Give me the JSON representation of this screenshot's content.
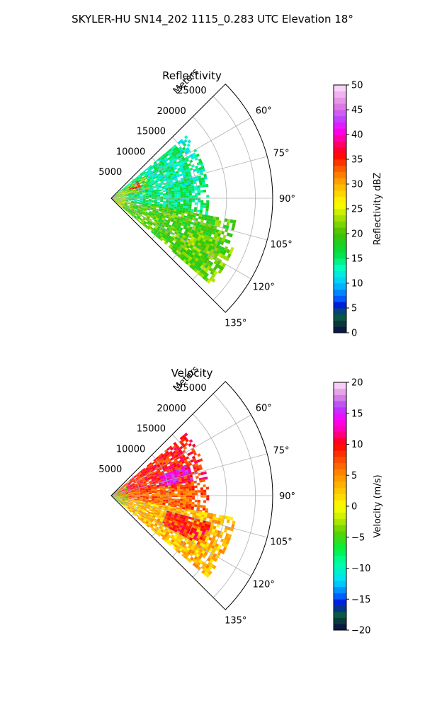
{
  "figure": {
    "title": "SKYLER-HU  SN14_202  1115_0.283 UTC Elevation 18°"
  },
  "chart_data": [
    {
      "type": "polar-sector",
      "title": "Reflectivity",
      "radial_label": "Meters",
      "theta_range_deg": [
        45,
        135
      ],
      "r_range": [
        0,
        28000
      ],
      "r_ticks": [
        5000,
        10000,
        15000,
        20000,
        25000
      ],
      "r_tick_labels": [
        "5000",
        "10000",
        "15000",
        "20000",
        "25000"
      ],
      "theta_ticks": [
        60,
        75,
        90,
        105,
        120,
        135
      ],
      "theta_tick_labels": [
        "60°",
        "75°",
        "90°",
        "105°",
        "120°",
        "135°"
      ],
      "grid": true,
      "field_regions": [
        {
          "theta": [
            50,
            80
          ],
          "r": [
            0,
            17000
          ],
          "value": 14
        },
        {
          "theta": [
            55,
            80
          ],
          "r": [
            0,
            7000
          ],
          "value": 22
        },
        {
          "theta": [
            58,
            68
          ],
          "r": [
            3500,
            5500
          ],
          "value": 35
        },
        {
          "theta": [
            80,
            100
          ],
          "r": [
            0,
            17000
          ],
          "value": 15
        },
        {
          "theta": [
            100,
            130
          ],
          "r": [
            0,
            22000
          ],
          "value": 20
        },
        {
          "theta": [
            112,
            130
          ],
          "r": [
            14000,
            23000
          ],
          "value": 21
        },
        {
          "theta": [
            50,
            130
          ],
          "r": [
            0,
            2500
          ],
          "value": 26
        }
      ],
      "colorbar": {
        "label": "Reflectivity dBZ",
        "range": [
          0,
          50
        ],
        "ticks": [
          0,
          5,
          10,
          15,
          20,
          25,
          30,
          35,
          40,
          45,
          50
        ],
        "tick_labels": [
          "0",
          "5",
          "10",
          "15",
          "20",
          "25",
          "30",
          "35",
          "40",
          "45",
          "50"
        ],
        "color_stops": [
          {
            "v": 0,
            "c": "#0a0a4a"
          },
          {
            "v": 2,
            "c": "#0a3a3a"
          },
          {
            "v": 4,
            "c": "#0a6a4a"
          },
          {
            "v": 5,
            "c": "#0000cc"
          },
          {
            "v": 7,
            "c": "#0060ff"
          },
          {
            "v": 10,
            "c": "#00c8ff"
          },
          {
            "v": 13,
            "c": "#00ffc8"
          },
          {
            "v": 16,
            "c": "#00e040"
          },
          {
            "v": 20,
            "c": "#40c000"
          },
          {
            "v": 23,
            "c": "#a0e000"
          },
          {
            "v": 26,
            "c": "#ffff00"
          },
          {
            "v": 30,
            "c": "#ffb000"
          },
          {
            "v": 33,
            "c": "#ff6000"
          },
          {
            "v": 36,
            "c": "#ff0000"
          },
          {
            "v": 38,
            "c": "#ff0060"
          },
          {
            "v": 41,
            "c": "#ff00ff"
          },
          {
            "v": 43,
            "c": "#c040ff"
          },
          {
            "v": 46,
            "c": "#e080e0"
          },
          {
            "v": 50,
            "c": "#ffe0ff"
          }
        ]
      }
    },
    {
      "type": "polar-sector",
      "title": "Velocity",
      "radial_label": "Meters",
      "theta_range_deg": [
        45,
        135
      ],
      "r_range": [
        0,
        28000
      ],
      "r_ticks": [
        5000,
        10000,
        15000,
        20000,
        25000
      ],
      "r_tick_labels": [
        "5000",
        "10000",
        "15000",
        "20000",
        "25000"
      ],
      "theta_ticks": [
        60,
        75,
        90,
        105,
        120,
        135
      ],
      "theta_tick_labels": [
        "60°",
        "75°",
        "90°",
        "105°",
        "120°",
        "135°"
      ],
      "grid": true,
      "field_regions": [
        {
          "theta": [
            50,
            80
          ],
          "r": [
            0,
            17000
          ],
          "value": 9
        },
        {
          "theta": [
            68,
            82
          ],
          "r": [
            9000,
            14500
          ],
          "value": 14
        },
        {
          "theta": [
            80,
            100
          ],
          "r": [
            0,
            17000
          ],
          "value": 7
        },
        {
          "theta": [
            100,
            130
          ],
          "r": [
            0,
            22000
          ],
          "value": 3
        },
        {
          "theta": [
            105,
            118
          ],
          "r": [
            10000,
            18000
          ],
          "value": 9
        },
        {
          "theta": [
            50,
            130
          ],
          "r": [
            0,
            3000
          ],
          "value": -4
        }
      ],
      "colorbar": {
        "label": "Velocity (m/s)",
        "range": [
          -20,
          20
        ],
        "ticks": [
          -20,
          -15,
          -10,
          -5,
          0,
          5,
          10,
          15,
          20
        ],
        "tick_labels": [
          "−20",
          "−15",
          "−10",
          "−5",
          "0",
          "5",
          "10",
          "15",
          "20"
        ],
        "color_stops": [
          {
            "v": -20,
            "c": "#0a0a4a"
          },
          {
            "v": -18.5,
            "c": "#0a3a3a"
          },
          {
            "v": -17,
            "c": "#0a6a4a"
          },
          {
            "v": -16,
            "c": "#0000cc"
          },
          {
            "v": -14.5,
            "c": "#0060ff"
          },
          {
            "v": -12,
            "c": "#00e0ff"
          },
          {
            "v": -9,
            "c": "#00ffa0"
          },
          {
            "v": -7,
            "c": "#00f040"
          },
          {
            "v": -4,
            "c": "#60d000"
          },
          {
            "v": -2,
            "c": "#c0f000"
          },
          {
            "v": 0,
            "c": "#ffff00"
          },
          {
            "v": 2,
            "c": "#ffd000"
          },
          {
            "v": 5,
            "c": "#ff9000"
          },
          {
            "v": 8,
            "c": "#ff4000"
          },
          {
            "v": 10,
            "c": "#ff0000"
          },
          {
            "v": 12,
            "c": "#ff00a0"
          },
          {
            "v": 14,
            "c": "#ff00ff"
          },
          {
            "v": 16,
            "c": "#b040ff"
          },
          {
            "v": 18,
            "c": "#e090e0"
          },
          {
            "v": 20,
            "c": "#ffe0ff"
          }
        ]
      }
    }
  ]
}
